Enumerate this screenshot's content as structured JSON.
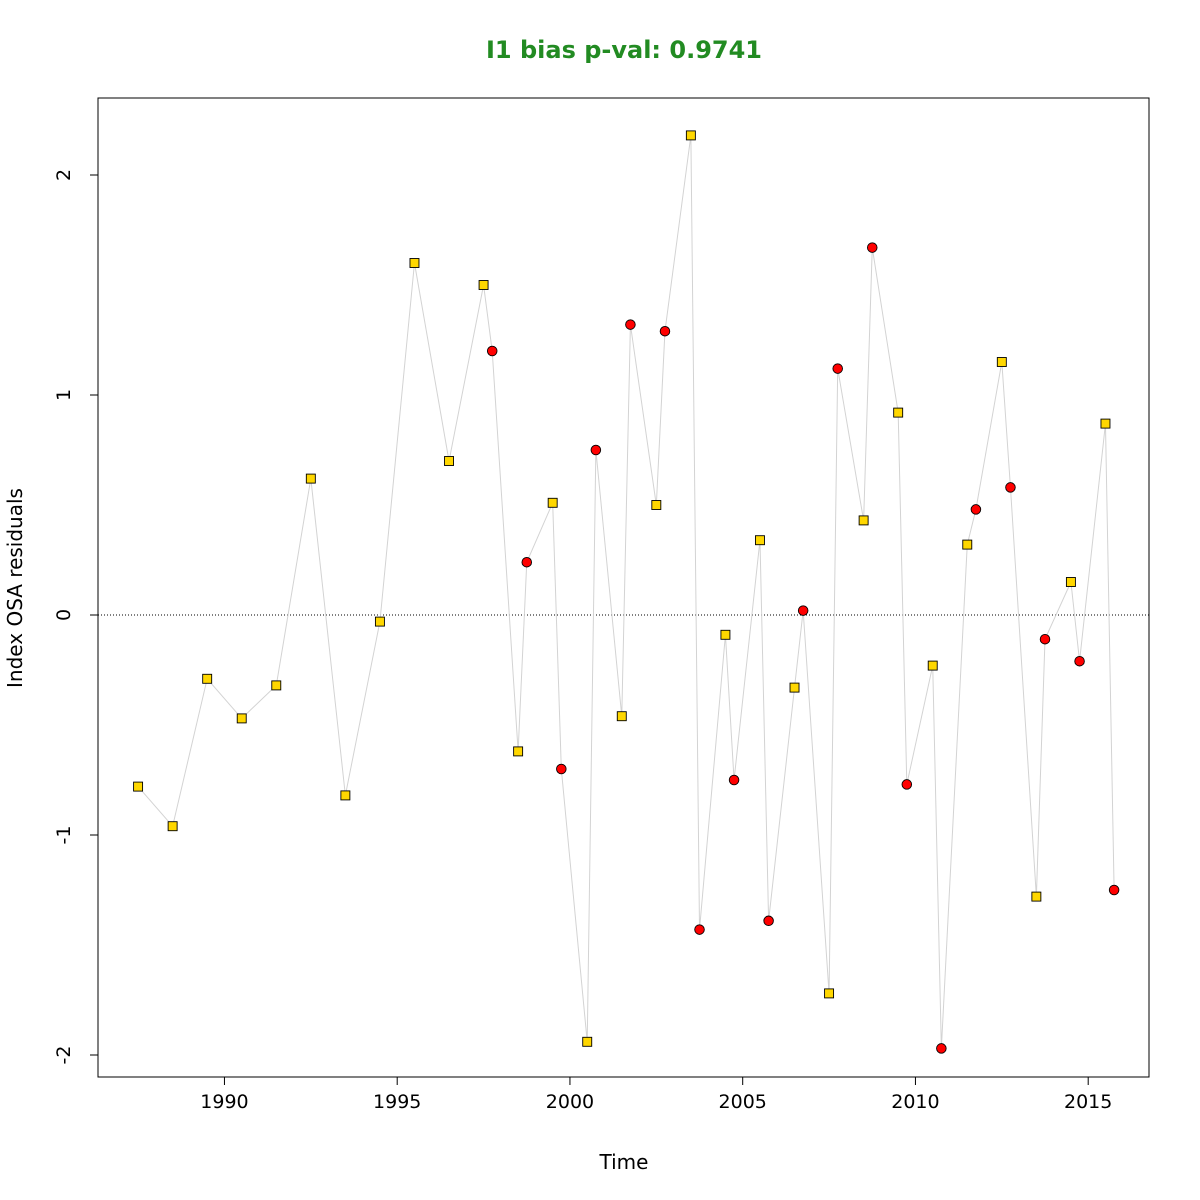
{
  "chart_data": {
    "type": "scatter",
    "title": "I1 bias p-val: 0.9741",
    "title_color": "#228B22",
    "xlabel": "Time",
    "ylabel": "Index OSA residuals",
    "xlim": [
      1986.34,
      2016.76
    ],
    "ylim": [
      -2.1,
      2.35
    ],
    "x_ticks": [
      1990,
      1995,
      2000,
      2005,
      2010,
      2015
    ],
    "y_ticks": [
      -2,
      -1,
      0,
      1,
      2
    ],
    "x_tick_labels": [
      "1990",
      "1995",
      "2000",
      "2005",
      "2010",
      "2015"
    ],
    "y_tick_labels": [
      "-2",
      "-1",
      "0",
      "1",
      "2"
    ],
    "reference_line": {
      "y": 0,
      "style": "dotted"
    },
    "line_color": "#D3D3D3",
    "grid": false,
    "series": [
      {
        "marker": "square",
        "color": "#FFD700",
        "points": [
          [
            1987.5,
            -0.78
          ],
          [
            1988.5,
            -0.96
          ],
          [
            1989.5,
            -0.29
          ],
          [
            1990.5,
            -0.47
          ],
          [
            1991.5,
            -0.32
          ],
          [
            1992.5,
            0.62
          ],
          [
            1993.5,
            -0.82
          ],
          [
            1994.5,
            -0.03
          ],
          [
            1995.5,
            1.6
          ],
          [
            1996.5,
            0.7
          ],
          [
            1997.5,
            1.5
          ],
          [
            1998.5,
            -0.62
          ],
          [
            1999.5,
            0.51
          ],
          [
            2000.5,
            -1.94
          ],
          [
            2001.5,
            -0.46
          ],
          [
            2002.5,
            0.5
          ],
          [
            2003.5,
            2.18
          ],
          [
            2004.5,
            -0.09
          ],
          [
            2005.5,
            0.34
          ],
          [
            2006.5,
            -0.33
          ],
          [
            2007.5,
            -1.72
          ],
          [
            2008.5,
            0.43
          ],
          [
            2009.5,
            0.92
          ],
          [
            2010.5,
            -0.23
          ],
          [
            2011.5,
            0.32
          ],
          [
            2012.5,
            1.15
          ],
          [
            2013.5,
            -1.28
          ],
          [
            2014.5,
            0.15
          ],
          [
            2015.5,
            0.87
          ]
        ]
      },
      {
        "marker": "circle",
        "color": "#FF0000",
        "points": [
          [
            1997.75,
            1.2
          ],
          [
            1998.75,
            0.24
          ],
          [
            1999.75,
            -0.7
          ],
          [
            2000.75,
            0.75
          ],
          [
            2001.75,
            1.32
          ],
          [
            2002.75,
            1.29
          ],
          [
            2003.75,
            -1.43
          ],
          [
            2004.75,
            -0.75
          ],
          [
            2005.75,
            -1.39
          ],
          [
            2006.75,
            0.02
          ],
          [
            2007.75,
            1.12
          ],
          [
            2008.75,
            1.67
          ],
          [
            2009.75,
            -0.77
          ],
          [
            2010.75,
            -1.97
          ],
          [
            2011.75,
            0.48
          ],
          [
            2012.75,
            0.58
          ],
          [
            2013.75,
            -0.11
          ],
          [
            2014.75,
            -0.21
          ],
          [
            2015.75,
            -1.25
          ]
        ]
      }
    ]
  }
}
